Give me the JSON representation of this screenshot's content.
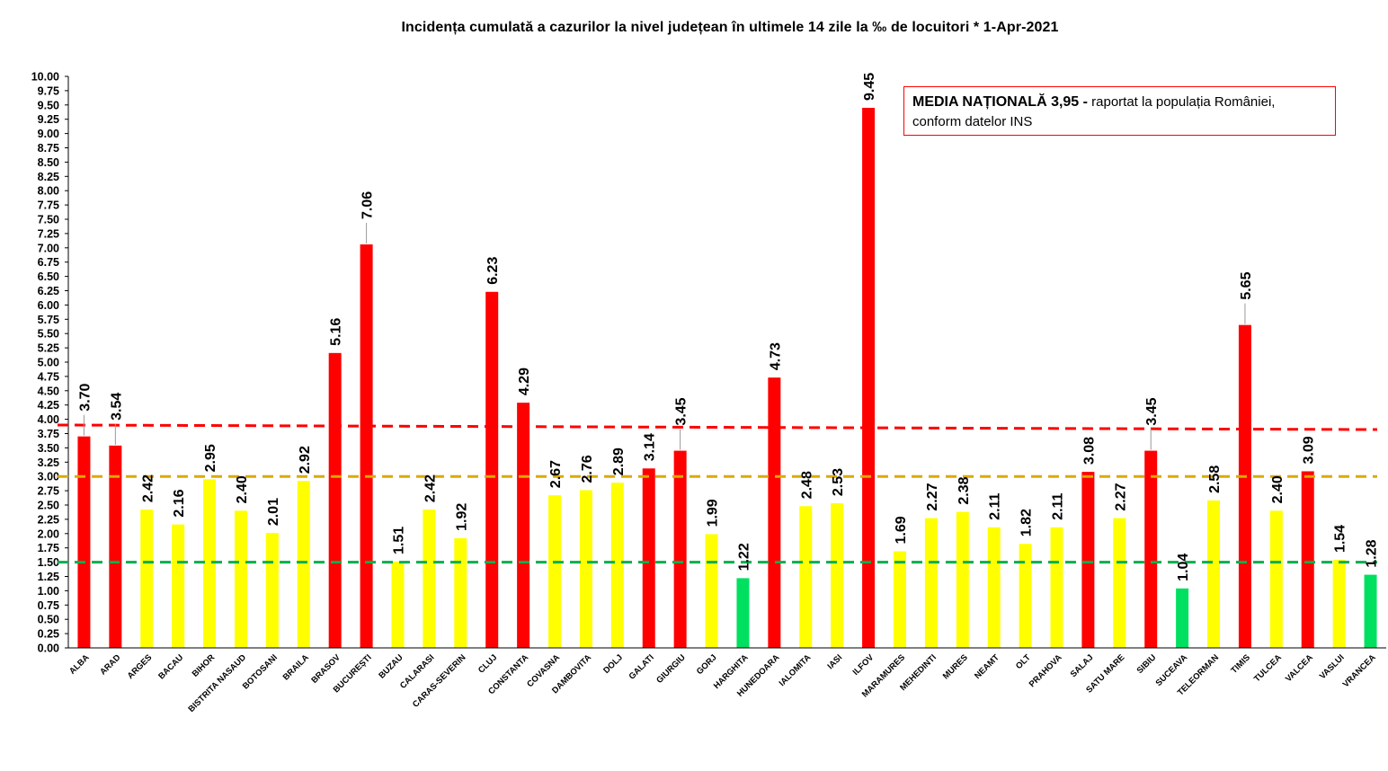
{
  "chart_data": {
    "type": "bar",
    "title": "Incidența cumulată a cazurilor la nivel județean în ultimele 14 zile la ‰ de locuitori *  1-Apr-2021",
    "xlabel": "",
    "ylabel": "",
    "ylim": [
      0,
      10
    ],
    "ytick_step": 0.25,
    "grid": false,
    "categories": [
      "ALBA",
      "ARAD",
      "ARGES",
      "BACAU",
      "BIHOR",
      "BISTRITA NASAUD",
      "BOTOSANI",
      "BRAILA",
      "BRASOV",
      "BUCUREȘTI",
      "BUZAU",
      "CALARASI",
      "CARAS-SEVERIN",
      "CLUJ",
      "CONSTANTA",
      "COVASNA",
      "DAMBOVITA",
      "DOLJ",
      "GALATI",
      "GIURGIU",
      "GORJ",
      "HARGHITA",
      "HUNEDOARA",
      "IALOMITA",
      "IASI",
      "ILFOV",
      "MARAMURES",
      "MEHEDINTI",
      "MURES",
      "NEAMT",
      "OLT",
      "PRAHOVA",
      "SALAJ",
      "SATU MARE",
      "SIBIU",
      "SUCEAVA",
      "TELEORMAN",
      "TIMIS",
      "TULCEA",
      "VALCEA",
      "VASLUI",
      "VRANCEA"
    ],
    "values": [
      3.7,
      3.54,
      2.42,
      2.16,
      2.95,
      2.4,
      2.01,
      2.92,
      5.16,
      7.06,
      1.51,
      2.42,
      1.92,
      6.23,
      4.29,
      2.67,
      2.76,
      2.89,
      3.14,
      3.45,
      1.99,
      1.22,
      4.73,
      2.48,
      2.53,
      9.45,
      1.69,
      2.27,
      2.38,
      2.11,
      1.82,
      2.11,
      3.08,
      2.27,
      3.45,
      1.04,
      2.58,
      5.65,
      2.4,
      3.09,
      1.54,
      1.28
    ],
    "value_labels": [
      "3.70",
      "3.54",
      "2.42",
      "2.16",
      "2.95",
      "2.40",
      "2.01",
      "2.92",
      "5.16",
      "7.06",
      "1.51",
      "2.42",
      "1.92",
      "6.23",
      "4.29",
      "2.67",
      "2.76",
      "2.89",
      "3.14",
      "3.45",
      "1.99",
      "1.22",
      "4.73",
      "2.48",
      "2.53",
      "9.45",
      "1.69",
      "2.27",
      "2.38",
      "2.11",
      "1.82",
      "2.11",
      "3.08",
      "2.27",
      "3.45",
      "1.04",
      "2.58",
      "5.65",
      "2.40",
      "3.09",
      "1.54",
      "1.28"
    ],
    "bar_colors": {
      "high": "#ff0000",
      "mid": "#ffff00",
      "low": "#00e060"
    },
    "thresholds": [
      {
        "name": "red-line",
        "value_start": 3.9,
        "value_end": 3.82,
        "color": "#ff0000"
      },
      {
        "name": "orange-line",
        "value_start": 3.0,
        "value_end": 3.0,
        "color": "#dcaa00"
      },
      {
        "name": "green-line",
        "value_start": 1.5,
        "value_end": 1.5,
        "color": "#00b050"
      }
    ],
    "y_tick_labels": [
      "0.00",
      "0.25",
      "0.50",
      "0.75",
      "1.00",
      "1.25",
      "1.50",
      "1.75",
      "2.00",
      "2.25",
      "2.50",
      "2.75",
      "3.00",
      "3.25",
      "3.50",
      "3.75",
      "4.00",
      "4.25",
      "4.50",
      "4.75",
      "5.00",
      "5.25",
      "5.50",
      "5.75",
      "6.00",
      "6.25",
      "6.50",
      "6.75",
      "7.00",
      "7.25",
      "7.50",
      "7.75",
      "8.00",
      "8.25",
      "8.50",
      "8.75",
      "9.00",
      "9.25",
      "9.50",
      "9.75",
      "10.00"
    ]
  },
  "annotation": {
    "bold_text": "MEDIA NAȚIONALĂ  3,95 -",
    "rest_text": " raportat la populația României, conform datelor INS"
  }
}
